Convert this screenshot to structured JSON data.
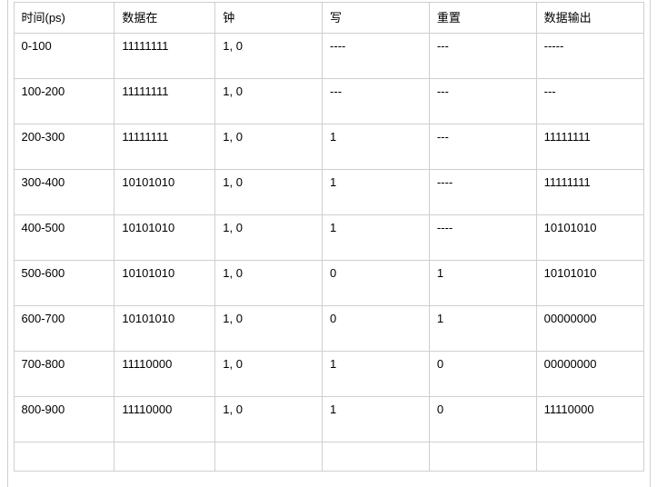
{
  "table": {
    "columns": [
      "时间(ps)",
      "数据在",
      "钟",
      "写",
      "重置",
      "数据输出"
    ],
    "col_widths_pct": [
      16,
      16,
      17,
      17,
      17,
      17
    ],
    "rows": [
      [
        "0-100",
        "11111111",
        "1, 0",
        "----",
        "---",
        "-----"
      ],
      [
        "100-200",
        "11111111",
        "1, 0",
        "---",
        "---",
        "---"
      ],
      [
        "200-300",
        "11111111",
        "1, 0",
        "1",
        "---",
        "11111111"
      ],
      [
        "300-400",
        "10101010",
        "1, 0",
        "1",
        "----",
        "11111111"
      ],
      [
        "400-500",
        "10101010",
        "1, 0",
        "1",
        "----",
        "10101010"
      ],
      [
        "500-600",
        "10101010",
        "1, 0",
        "0",
        "1",
        "10101010"
      ],
      [
        "600-700",
        "10101010",
        "1, 0",
        "0",
        "1",
        "00000000"
      ],
      [
        "700-800",
        "11110000",
        "1, 0",
        "1",
        "0",
        "00000000"
      ],
      [
        "800-900",
        "11110000",
        "1, 0",
        "1",
        "0",
        "11110000"
      ]
    ],
    "trailing_empty_row": true,
    "border_color": "#cfcfcf",
    "text_color": "#000000",
    "background_color": "#ffffff",
    "font_size_pt": 10
  }
}
